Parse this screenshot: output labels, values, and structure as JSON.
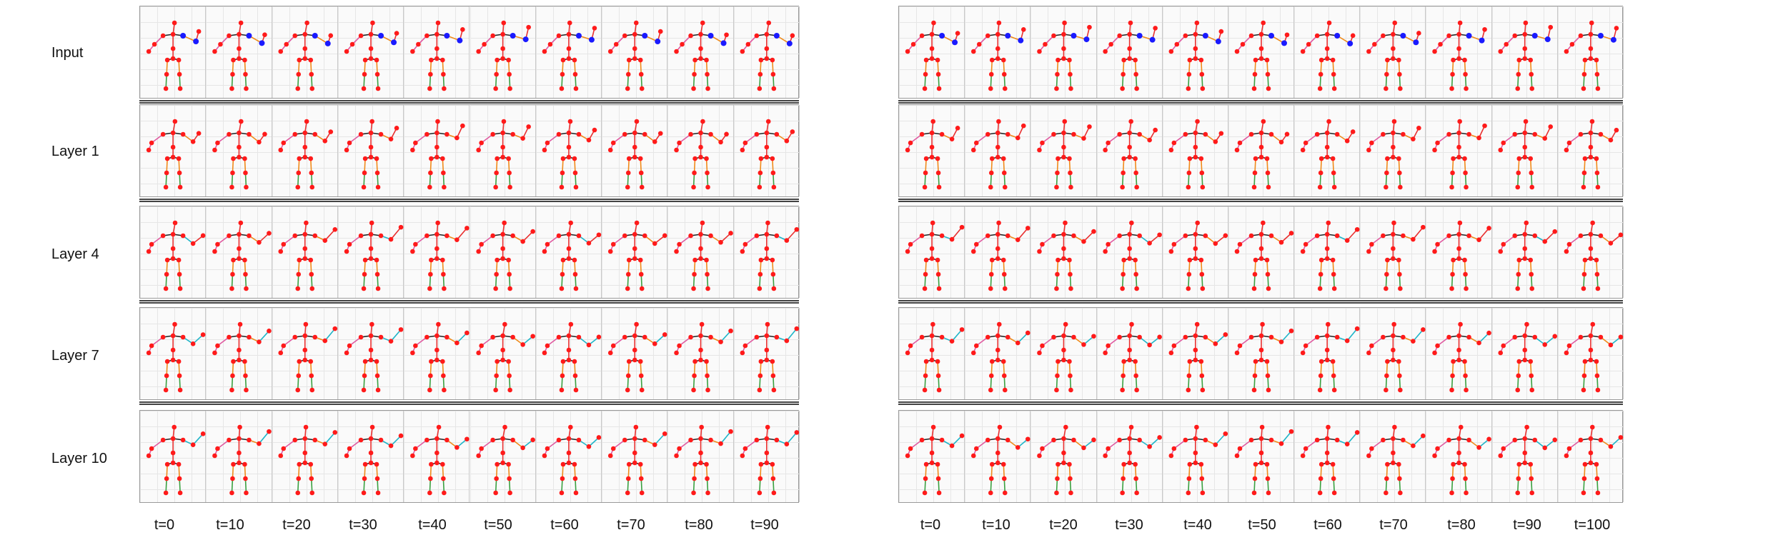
{
  "figure": {
    "row_labels": [
      "Input",
      "Layer 1",
      "Layer 4",
      "Layer 7",
      "Layer 10"
    ],
    "left_panel": {
      "time_labels": [
        "t=0",
        "t=10",
        "t=20",
        "t=30",
        "t=40",
        "t=50",
        "t=60",
        "t=70",
        "t=80",
        "t=90"
      ]
    },
    "right_panel": {
      "time_labels": [
        "t=0",
        "t=10",
        "t=20",
        "t=30",
        "t=40",
        "t=50",
        "t=60",
        "t=70",
        "t=80",
        "t=90",
        "t=100"
      ]
    }
  },
  "colors": {
    "joint": "#ff1a1a",
    "input_highlight_joint": "#1a1aff",
    "bone_red": "#e83030",
    "bone_dark": "#222222",
    "bone_cyan": "#1fb5c8",
    "bone_orange": "#f08a1a",
    "bone_pink": "#e05aa0",
    "bone_green": "#3aa040",
    "grid": "#e6e6e6",
    "separator": "#444444"
  }
}
